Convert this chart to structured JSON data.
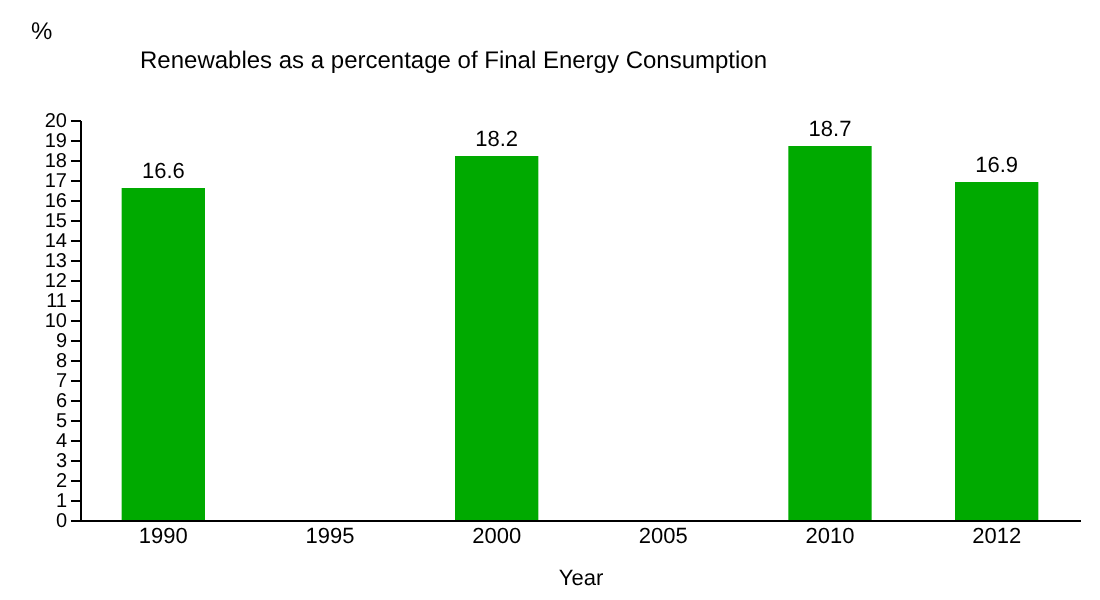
{
  "chart_data": {
    "type": "bar",
    "title": "Renewables as a percentage of Final Energy Consumption",
    "xlabel": "Year",
    "ylabel": "%",
    "categories": [
      "1990",
      "1995",
      "2000",
      "2005",
      "2010",
      "2012"
    ],
    "values": [
      16.6,
      null,
      18.2,
      null,
      18.7,
      16.9
    ],
    "color": "#00aa00",
    "ylim": [
      0,
      20
    ],
    "yticks": [
      0,
      1,
      2,
      3,
      4,
      5,
      6,
      7,
      8,
      9,
      10,
      11,
      12,
      13,
      14,
      15,
      16,
      17,
      18,
      19,
      20
    ],
    "grid": false,
    "data_labels": true
  }
}
